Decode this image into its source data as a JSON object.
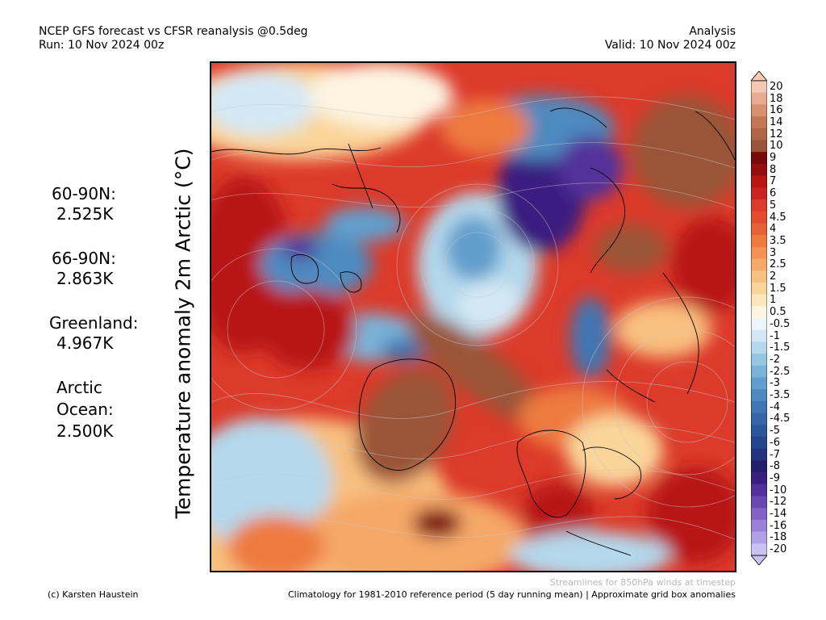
{
  "header": {
    "title_line1": "NCEP GFS forecast vs CFSR reanalysis @0.5deg",
    "title_line2": "Run: 10 Nov 2024 00z",
    "right_line1": "Analysis",
    "right_line2": "Valid: 10 Nov 2024 00z"
  },
  "y_label": "Temperature anomaly 2m Arctic (°C)",
  "stats": [
    {
      "label": "60-90N:",
      "value": "2.525K"
    },
    {
      "label": "66-90N:",
      "value": "2.863K"
    },
    {
      "label": "Greenland:",
      "value": "4.967K"
    },
    {
      "label_line1": "Arctic",
      "label_line2": "Ocean:",
      "value": "2.500K"
    }
  ],
  "footer": {
    "credit": "(c) Karsten Haustein",
    "streamlines_note": "Streamlines for 850hPa winds at timestep",
    "climatology_note": "Climatology for 1981-2010 reference period (5 day running mean) | Approximate grid box anomalies"
  },
  "colorbar": {
    "labels": [
      "20",
      "18",
      "16",
      "14",
      "12",
      "10",
      "9",
      "8",
      "7",
      "6",
      "5",
      "4.5",
      "4",
      "3.5",
      "3",
      "2.5",
      "2",
      "1.5",
      "1",
      "0.5",
      "-0.5",
      "-1",
      "-1.5",
      "-2",
      "-2.5",
      "-3",
      "-3.5",
      "-4",
      "-4.5",
      "-5",
      "-6",
      "-7",
      "-8",
      "-9",
      "-10",
      "-12",
      "-14",
      "-16",
      "-18",
      "-20"
    ],
    "colors": [
      "#f6c8b4",
      "#e8ab90",
      "#d89070",
      "#c47858",
      "#b06548",
      "#9a5538",
      "#7a0a0a",
      "#950f0f",
      "#b81515",
      "#cc2222",
      "#dc3a2a",
      "#e34c2e",
      "#e86035",
      "#ee7a40",
      "#f29055",
      "#f5a868",
      "#f8c080",
      "#fad59a",
      "#fce6bc",
      "#fdf4e2",
      "#eef5fa",
      "#d4e8f4",
      "#b4d8ec",
      "#96c6e2",
      "#7ab2d8",
      "#629ecc",
      "#4e8ac0",
      "#3f76b3",
      "#3466a8",
      "#2a569c",
      "#24468f",
      "#23347e",
      "#241f6a",
      "#3a1f80",
      "#53309a",
      "#6a48b2",
      "#8262c8",
      "#9a80d8",
      "#b2a0e6",
      "#cac2f0"
    ]
  },
  "map": {
    "description_free": true,
    "colors": {
      "warm_dark": "#b81515",
      "warm": "#dc3a2a",
      "warm_orange": "#ee7a40",
      "warm_light": "#f8c080",
      "very_warm_brown": "#9a5538",
      "neutral": "#fdf4e2",
      "cool_light": "#b4d8ec",
      "cool": "#4e8ac0",
      "cold": "#2a569c",
      "very_cold": "#53309a"
    }
  }
}
